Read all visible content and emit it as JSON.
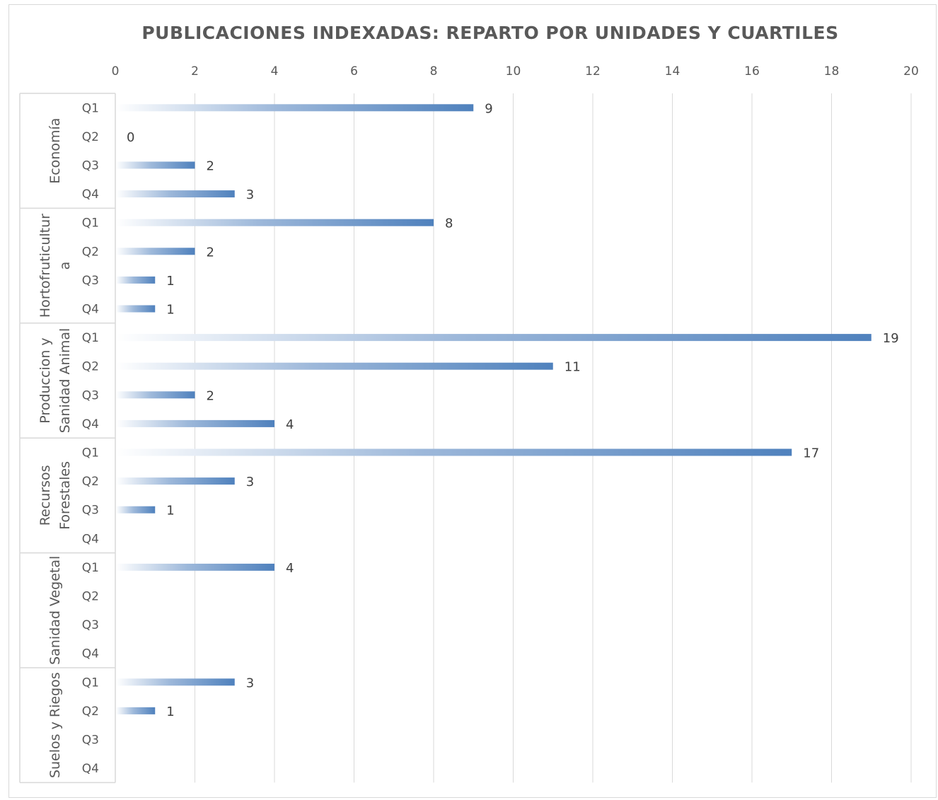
{
  "chart_data": {
    "type": "bar",
    "orientation": "horizontal",
    "title": "PUBLICACIONES INDEXADAS: REPARTO POR UNIDADES Y CUARTILES",
    "xlim": [
      0,
      20
    ],
    "x_ticks": [
      0,
      2,
      4,
      6,
      8,
      10,
      12,
      14,
      16,
      18,
      20
    ],
    "x_axis_position": "top",
    "grid": true,
    "legend": "none",
    "bar_color": "#4f81bd",
    "groups": [
      {
        "label_lines": [
          "Economía"
        ],
        "categories": [
          "Q1",
          "Q2",
          "Q3",
          "Q4"
        ],
        "values": [
          9,
          0,
          2,
          3
        ],
        "data_labels": [
          "9",
          "0",
          "2",
          "3"
        ]
      },
      {
        "label_lines": [
          "Hortofruticultur",
          "a"
        ],
        "categories": [
          "Q1",
          "Q2",
          "Q3",
          "Q4"
        ],
        "values": [
          8,
          2,
          1,
          1
        ],
        "data_labels": [
          "8",
          "2",
          "1",
          "1"
        ]
      },
      {
        "label_lines": [
          "Produccion y",
          "Sanidad Animal"
        ],
        "categories": [
          "Q1",
          "Q2",
          "Q3",
          "Q4"
        ],
        "values": [
          19,
          11,
          2,
          4
        ],
        "data_labels": [
          "19",
          "11",
          "2",
          "4"
        ]
      },
      {
        "label_lines": [
          "Recursos",
          "Forestales"
        ],
        "categories": [
          "Q1",
          "Q2",
          "Q3",
          "Q4"
        ],
        "values": [
          17,
          3,
          1,
          null
        ],
        "data_labels": [
          "17",
          "3",
          "1",
          ""
        ]
      },
      {
        "label_lines": [
          "Sanidad Vegetal"
        ],
        "categories": [
          "Q1",
          "Q2",
          "Q3",
          "Q4"
        ],
        "values": [
          4,
          null,
          null,
          null
        ],
        "data_labels": [
          "4",
          "",
          "",
          ""
        ]
      },
      {
        "label_lines": [
          "Suelos y Riegos"
        ],
        "categories": [
          "Q1",
          "Q2",
          "Q3",
          "Q4"
        ],
        "values": [
          3,
          1,
          null,
          null
        ],
        "data_labels": [
          "3",
          "1",
          "",
          ""
        ]
      }
    ]
  }
}
